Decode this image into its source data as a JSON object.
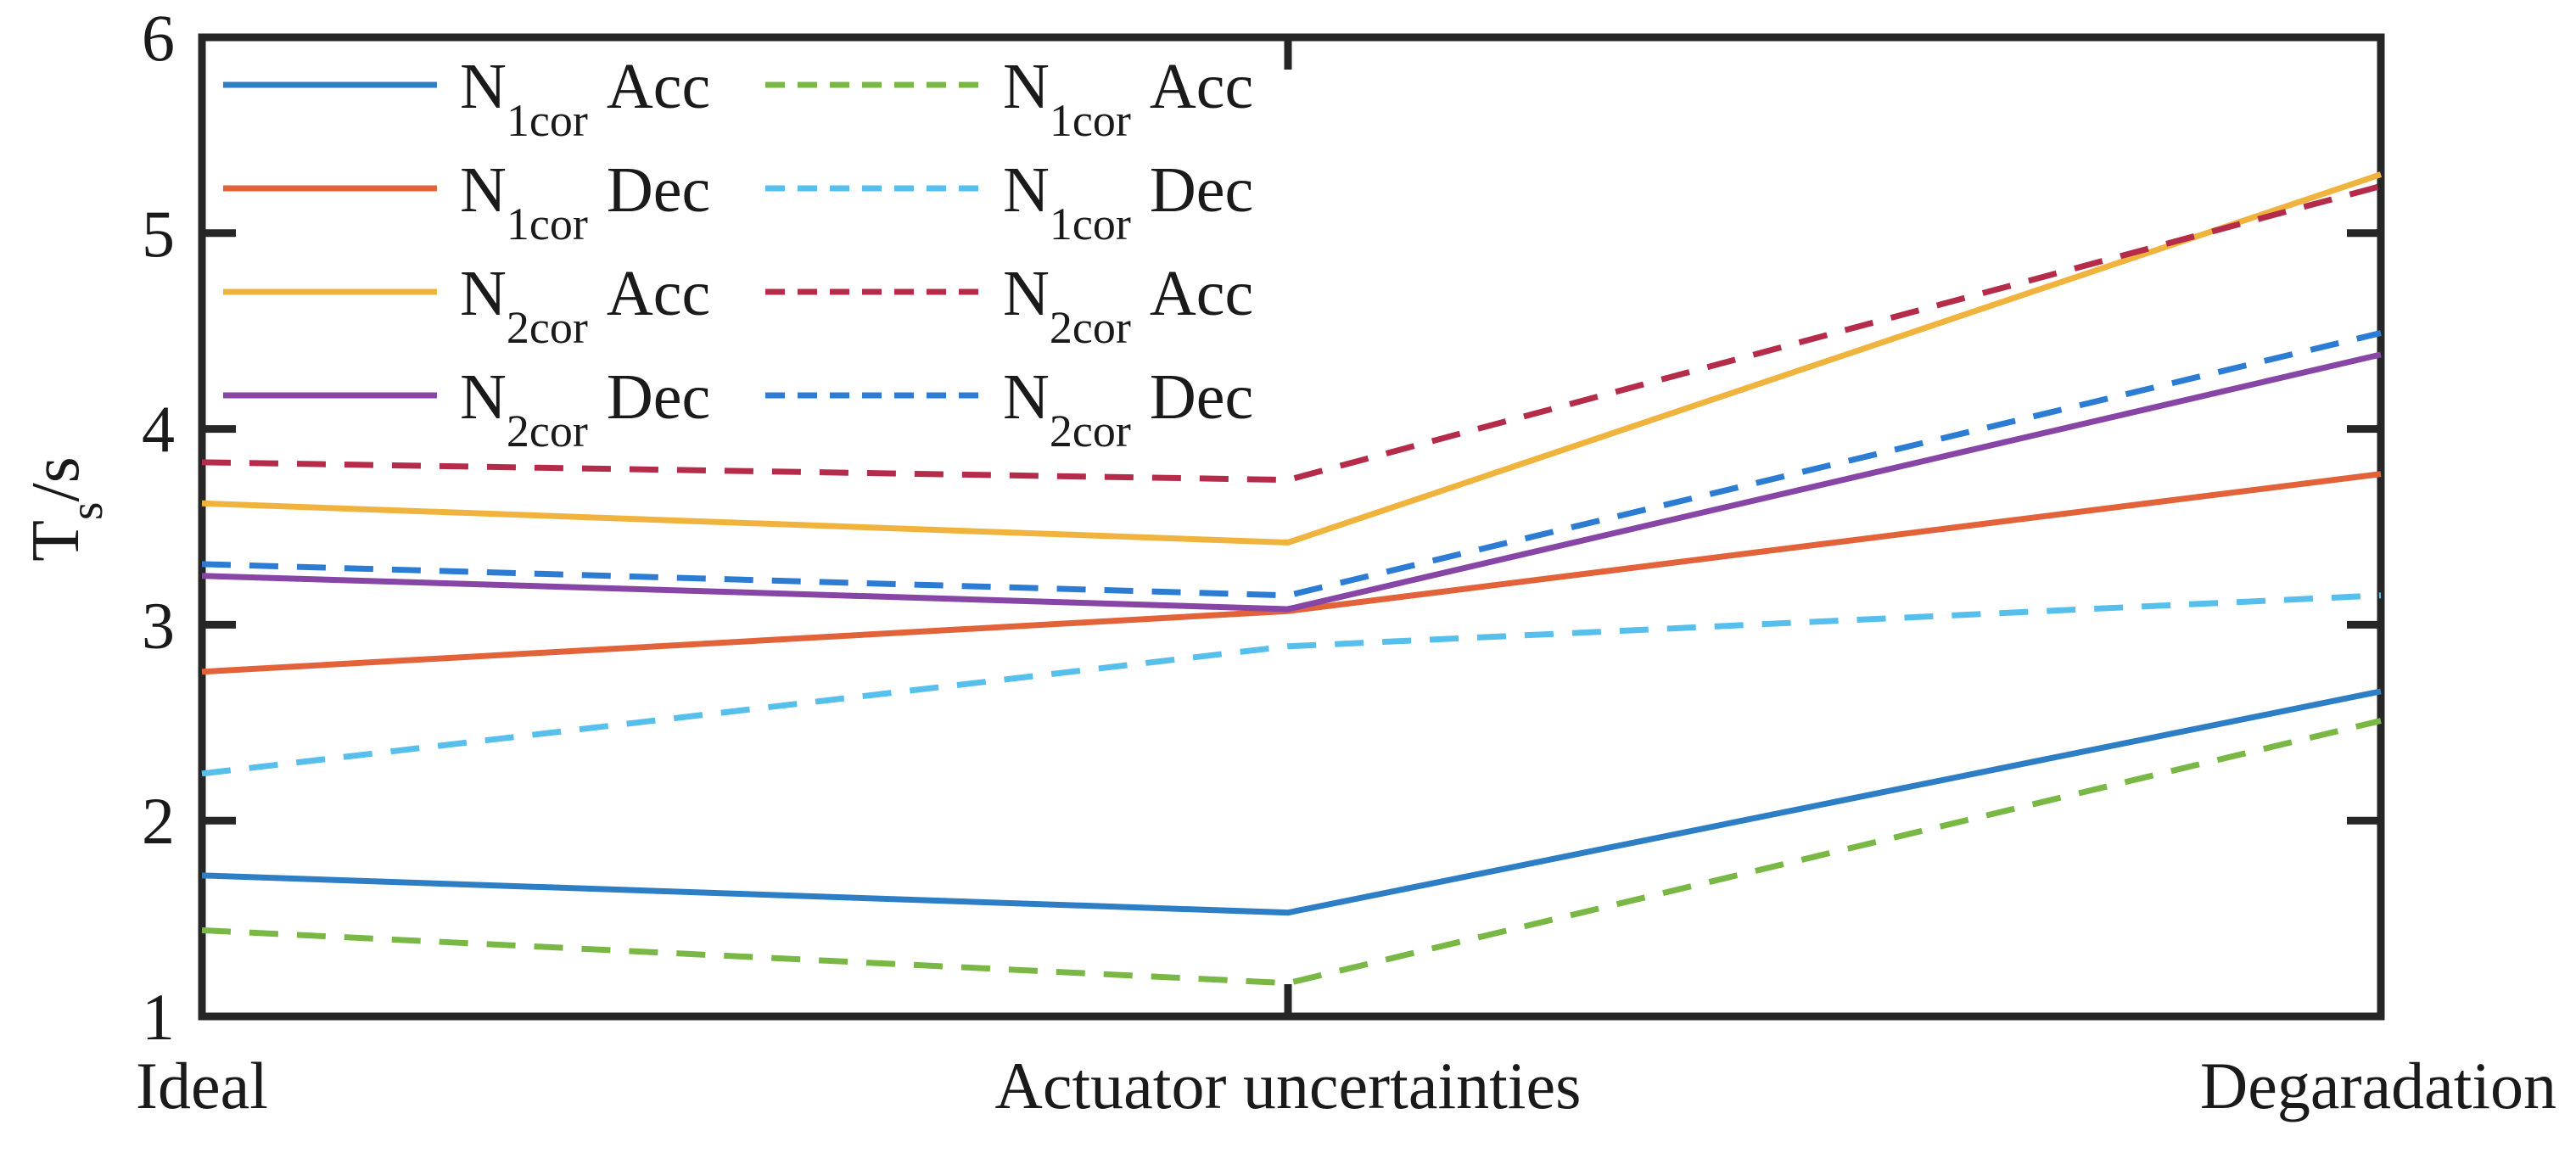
{
  "page": {
    "background": "#ffffff"
  },
  "axes": {
    "ylabel_base": "T",
    "ylabel_sub": "s",
    "ylabel_rest": "/s",
    "yticks": [
      6,
      5,
      4,
      3,
      2,
      1
    ],
    "axis_color": "#262626",
    "text_color": "#1a1a1a"
  },
  "chart_data": {
    "type": "line",
    "title": "",
    "xlabel": "",
    "ylabel": "T_s/s",
    "ylim": [
      1,
      6
    ],
    "grid": false,
    "legend_position": "top-left-two-columns",
    "categories": [
      "Ideal",
      "Actuator uncertainties",
      "Degaradation"
    ],
    "series": [
      {
        "name": "N1cor Acc solid",
        "legend": {
          "base": "N",
          "sub": "1cor",
          "text": "Acc"
        },
        "style": "solid",
        "color": "#2E7EC6",
        "values": [
          1.72,
          1.53,
          2.66
        ]
      },
      {
        "name": "N1cor Dec solid",
        "legend": {
          "base": "N",
          "sub": "1cor",
          "text": "Dec"
        },
        "style": "solid",
        "color": "#E2633A",
        "values": [
          2.76,
          3.07,
          3.77
        ]
      },
      {
        "name": "N2cor Acc solid",
        "legend": {
          "base": "N",
          "sub": "2cor",
          "text": "Acc"
        },
        "style": "solid",
        "color": "#F0B43E",
        "values": [
          3.62,
          3.42,
          5.3
        ]
      },
      {
        "name": "N2cor Dec solid",
        "legend": {
          "base": "N",
          "sub": "2cor",
          "text": "Dec"
        },
        "style": "solid",
        "color": "#8745A6",
        "values": [
          3.25,
          3.08,
          4.38
        ]
      },
      {
        "name": "N1cor Acc dashed",
        "legend": {
          "base": "N",
          "sub": "1cor",
          "text": "Acc"
        },
        "style": "dashed",
        "color": "#79B844",
        "values": [
          1.44,
          1.17,
          2.51
        ]
      },
      {
        "name": "N1cor Dec dashed",
        "legend": {
          "base": "N",
          "sub": "1cor",
          "text": "Dec"
        },
        "style": "dashed",
        "color": "#57BFEC",
        "values": [
          2.24,
          2.89,
          3.15
        ]
      },
      {
        "name": "N2cor Acc dashed",
        "legend": {
          "base": "N",
          "sub": "2cor",
          "text": "Acc"
        },
        "style": "dashed",
        "color": "#B42C49",
        "values": [
          3.83,
          3.74,
          5.24
        ]
      },
      {
        "name": "N2cor Dec dashed",
        "legend": {
          "base": "N",
          "sub": "2cor",
          "text": "Dec"
        },
        "style": "dashed",
        "color": "#2C7CD4",
        "values": [
          3.31,
          3.15,
          4.49
        ]
      }
    ]
  }
}
